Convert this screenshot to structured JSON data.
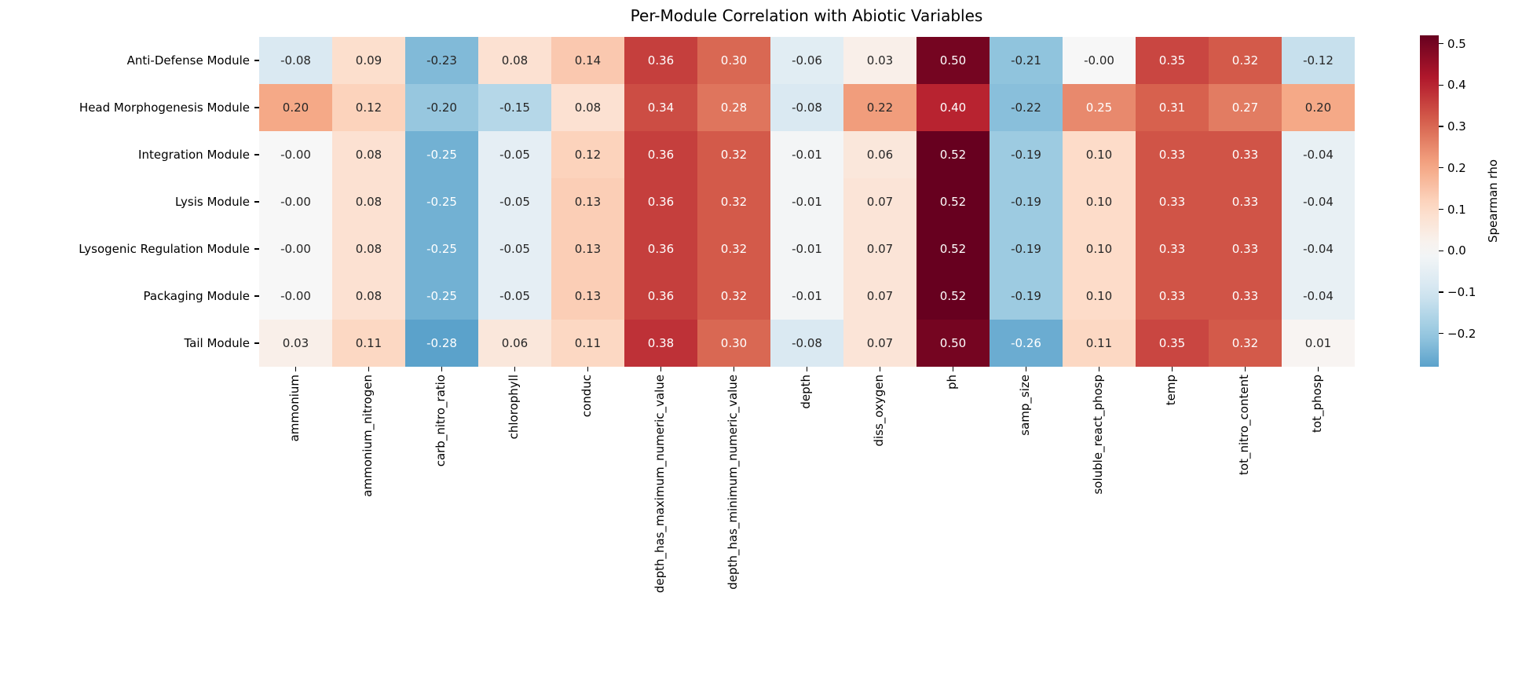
{
  "chart_data": {
    "type": "heatmap",
    "title": "Per-Module Correlation with Abiotic Variables",
    "colorbar_label": "Spearman rho",
    "colormap": "RdBu_r",
    "center": 0,
    "vmin": -0.28,
    "vmax": 0.52,
    "legend_position": "right",
    "colorbar_tick_labels": [
      "0.5",
      "0.4",
      "0.3",
      "0.2",
      "0.1",
      "0.0",
      "−0.1",
      "−0.2"
    ],
    "colorbar_tick_values": [
      0.5,
      0.4,
      0.3,
      0.2,
      0.1,
      0.0,
      -0.1,
      -0.2
    ],
    "rows": [
      "Anti-Defense Module",
      "Head Morphogenesis Module",
      "Integration Module",
      "Lysis Module",
      "Lysogenic Regulation Module",
      "Packaging Module",
      "Tail Module"
    ],
    "columns": [
      "ammonium",
      "ammonium_nitrogen",
      "carb_nitro_ratio",
      "chlorophyll",
      "conduc",
      "depth_has_maximum_numeric_value",
      "depth_has_minimum_numeric_value",
      "depth",
      "diss_oxygen",
      "ph",
      "samp_size",
      "soluble_react_phosp",
      "temp",
      "tot_nitro_content",
      "tot_phosp"
    ],
    "values": [
      [
        "-0.08",
        "0.09",
        "-0.23",
        "0.08",
        "0.14",
        "0.36",
        "0.30",
        "-0.06",
        "0.03",
        "0.50",
        "-0.21",
        "-0.00",
        "0.35",
        "0.32",
        "-0.12"
      ],
      [
        "0.20",
        "0.12",
        "-0.20",
        "-0.15",
        "0.08",
        "0.34",
        "0.28",
        "-0.08",
        "0.22",
        "0.40",
        "-0.22",
        "0.25",
        "0.31",
        "0.27",
        "0.20"
      ],
      [
        "-0.00",
        "0.08",
        "-0.25",
        "-0.05",
        "0.12",
        "0.36",
        "0.32",
        "-0.01",
        "0.06",
        "0.52",
        "-0.19",
        "0.10",
        "0.33",
        "0.33",
        "-0.04"
      ],
      [
        "-0.00",
        "0.08",
        "-0.25",
        "-0.05",
        "0.13",
        "0.36",
        "0.32",
        "-0.01",
        "0.07",
        "0.52",
        "-0.19",
        "0.10",
        "0.33",
        "0.33",
        "-0.04"
      ],
      [
        "-0.00",
        "0.08",
        "-0.25",
        "-0.05",
        "0.13",
        "0.36",
        "0.32",
        "-0.01",
        "0.07",
        "0.52",
        "-0.19",
        "0.10",
        "0.33",
        "0.33",
        "-0.04"
      ],
      [
        "-0.00",
        "0.08",
        "-0.25",
        "-0.05",
        "0.13",
        "0.36",
        "0.32",
        "-0.01",
        "0.07",
        "0.52",
        "-0.19",
        "0.10",
        "0.33",
        "0.33",
        "-0.04"
      ],
      [
        "0.03",
        "0.11",
        "-0.28",
        "0.06",
        "0.11",
        "0.38",
        "0.30",
        "-0.08",
        "0.07",
        "0.50",
        "-0.26",
        "0.11",
        "0.35",
        "0.32",
        "0.01"
      ]
    ],
    "annotation_text_dark": "#262626",
    "annotation_text_light": "#ffffff"
  }
}
